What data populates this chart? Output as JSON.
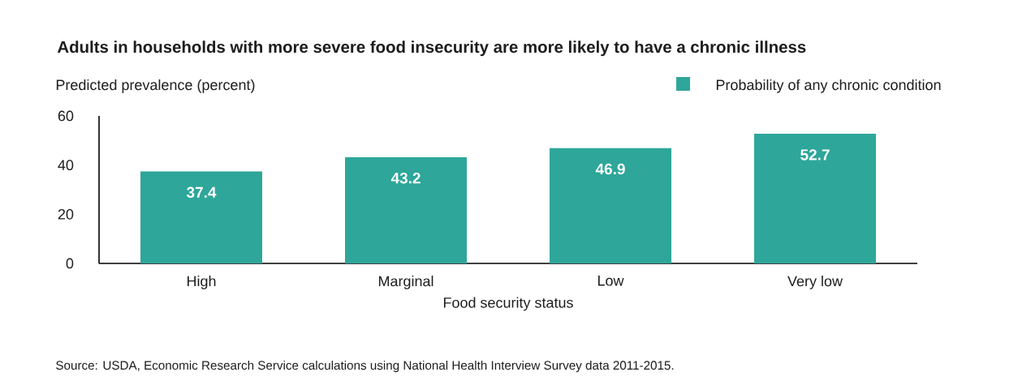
{
  "chart_data": {
    "type": "bar",
    "title": "Adults in households with more severe food insecurity are more likely to have a chronic illness",
    "ylabel": "Predicted prevalence (percent)",
    "xlabel": "Food security status",
    "categories": [
      "High",
      "Marginal",
      "Low",
      "Very low"
    ],
    "series": [
      {
        "name": "Probability of any chronic condition",
        "color": "#2ea69a",
        "values": [
          37.4,
          43.2,
          46.9,
          52.7
        ]
      }
    ],
    "ylim": [
      0,
      60
    ],
    "yticks": [
      0,
      20,
      40,
      60
    ],
    "data_labels": true,
    "legend": "top right",
    "annotations": [
      "Source: USDA, Economic Research Service calculations using National Health Interview Survey data 2011-2015."
    ]
  }
}
